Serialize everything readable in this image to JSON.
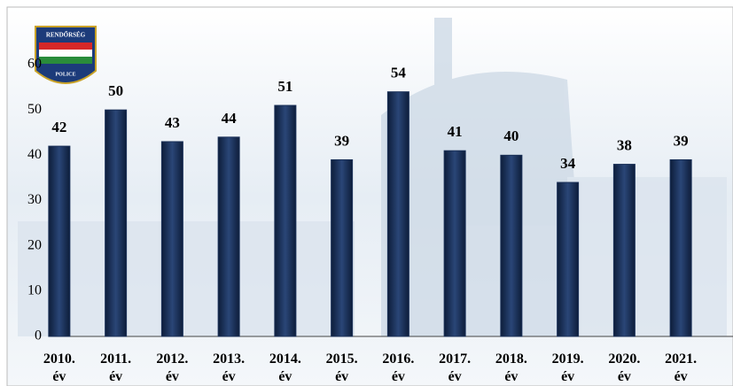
{
  "chart_data": {
    "type": "bar",
    "logo": {
      "top": "RENDŐRSÉG",
      "bottom": "POLICE"
    },
    "categories": [
      "2010. év",
      "2011. év",
      "2012. év",
      "2013. év",
      "2014. év",
      "2015. év",
      "2016. év",
      "2017. év",
      "2018. év",
      "2019. év",
      "2020. év",
      "2021. év"
    ],
    "values": [
      42,
      50,
      43,
      44,
      51,
      39,
      54,
      41,
      40,
      34,
      38,
      39
    ],
    "color": "#1b3158",
    "ylim": [
      0,
      60
    ],
    "yticks": [
      0,
      10,
      20,
      30,
      40,
      50,
      60
    ],
    "grid": false
  }
}
